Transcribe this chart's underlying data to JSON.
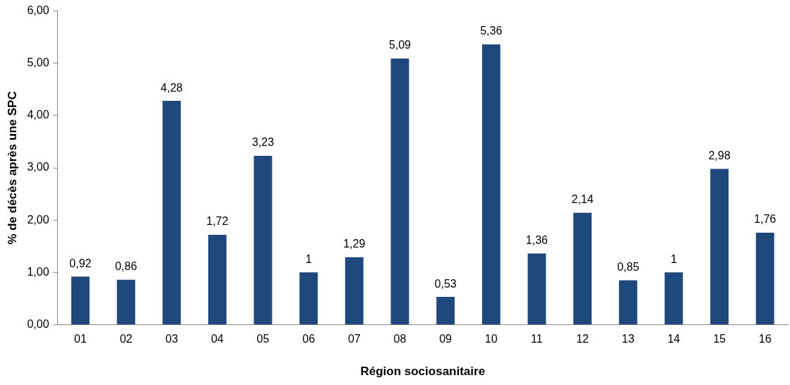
{
  "chart_data": {
    "type": "bar",
    "xlabel": "Région sociosanitaire",
    "ylabel": "% de décès après une SPC",
    "categories": [
      "01",
      "02",
      "03",
      "04",
      "05",
      "06",
      "07",
      "08",
      "09",
      "10",
      "11",
      "12",
      "13",
      "14",
      "15",
      "16"
    ],
    "values": [
      0.92,
      0.86,
      4.28,
      1.72,
      3.23,
      1,
      1.29,
      5.09,
      0.53,
      5.36,
      1.36,
      2.14,
      0.85,
      1,
      2.98,
      1.76
    ],
    "value_labels": [
      "0,92",
      "0,86",
      "4,28",
      "1,72",
      "3,23",
      "1",
      "1,29",
      "5,09",
      "0,53",
      "5,36",
      "1,36",
      "2,14",
      "0,85",
      "1",
      "2,98",
      "1,76"
    ],
    "color": "#1f497d",
    "ylim": [
      0,
      6
    ],
    "yticks": [
      {
        "value": 0,
        "label": "0,00"
      },
      {
        "value": 1,
        "label": "1,00"
      },
      {
        "value": 2,
        "label": "2,00"
      },
      {
        "value": 3,
        "label": "3,00"
      },
      {
        "value": 4,
        "label": "4,00"
      },
      {
        "value": 5,
        "label": "5,00"
      },
      {
        "value": 6,
        "label": "6,00"
      }
    ],
    "grid": false,
    "legend": false
  }
}
